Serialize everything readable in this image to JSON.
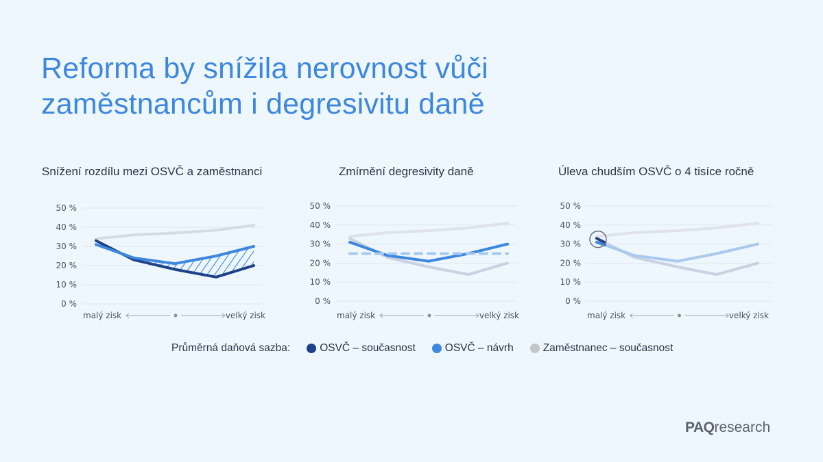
{
  "title_line1": "Reforma by snížila nerovnost vůči",
  "title_line2": "zaměstnancům i degresivitu daně",
  "legend": {
    "label": "Průměrná daňová sazba:",
    "items": [
      {
        "label": "OSVČ – současnost",
        "color": "#1d4287"
      },
      {
        "label": "OSVČ – návrh",
        "color": "#3d87de"
      },
      {
        "label": "Zaměstnanec – současnost",
        "color": "#c2c6cc"
      }
    ]
  },
  "logo": {
    "bold": "PAQ",
    "rest": "research"
  },
  "chart_data": [
    {
      "type": "line",
      "title": "Snížení rozdílu mezi OSVČ a zaměstnanci",
      "yticks": [
        "0 %",
        "10 %",
        "20 %",
        "30 %",
        "40 %",
        "50 %"
      ],
      "ylim": [
        0,
        50
      ],
      "xlabel_left": "malý zisk",
      "xlabel_right": "velký zisk",
      "x": [
        1,
        2,
        3,
        4,
        5
      ],
      "series": [
        {
          "name": "Zaměstnanec – současnost",
          "values": [
            34,
            36,
            37,
            38.5,
            41
          ],
          "color": "#d6dbe3"
        },
        {
          "name": "OSVČ – současnost",
          "values": [
            33,
            23,
            18,
            14,
            20
          ],
          "color": "#1d4287"
        },
        {
          "name": "OSVČ – návrh",
          "values": [
            31,
            24,
            21,
            25,
            30
          ],
          "color": "#3d87de"
        }
      ],
      "annotation": "hatched area between OSVČ – návrh and OSVČ – současnost"
    },
    {
      "type": "line",
      "title": "Zmírnění degresivity daně",
      "yticks": [
        "0 %",
        "10 %",
        "20 %",
        "30 %",
        "40 %",
        "50 %"
      ],
      "ylim": [
        0,
        50
      ],
      "xlabel_left": "malý zisk",
      "xlabel_right": "velký zisk",
      "x": [
        1,
        2,
        3,
        4,
        5
      ],
      "series": [
        {
          "name": "Zaměstnanec – současnost",
          "values": [
            34,
            36,
            37,
            38.5,
            41
          ],
          "color": "#dfe2e8"
        },
        {
          "name": "OSVČ – současnost",
          "values": [
            33,
            23,
            18,
            14,
            20
          ],
          "color": "#c9d2e2"
        },
        {
          "name": "OSVČ – návrh",
          "values": [
            31,
            24,
            21,
            25,
            30
          ],
          "color": "#3d87de"
        },
        {
          "name": "reference",
          "values": [
            25,
            25,
            25,
            25,
            25
          ],
          "color": "#a6c8f0",
          "dashed": true
        }
      ]
    },
    {
      "type": "line",
      "title": "Úleva chudším OSVČ o 4 tisíce ročně",
      "yticks": [
        "0 %",
        "10 %",
        "20 %",
        "30 %",
        "40 %",
        "50 %"
      ],
      "ylim": [
        0,
        50
      ],
      "xlabel_left": "malý zisk",
      "xlabel_right": "velký zisk",
      "x": [
        1,
        2,
        3,
        4,
        5
      ],
      "series": [
        {
          "name": "Zaměstnanec – současnost",
          "values": [
            34,
            36,
            37,
            38.5,
            41
          ],
          "color": "#dfe2e8"
        },
        {
          "name": "OSVČ – současnost",
          "values": [
            33,
            23,
            18,
            14,
            20
          ],
          "color": "#c9d2e2"
        },
        {
          "name": "OSVČ – návrh",
          "values": [
            31,
            24,
            21,
            25,
            30
          ],
          "color": "#a9c9ee"
        }
      ],
      "highlight_point": 1
    }
  ]
}
